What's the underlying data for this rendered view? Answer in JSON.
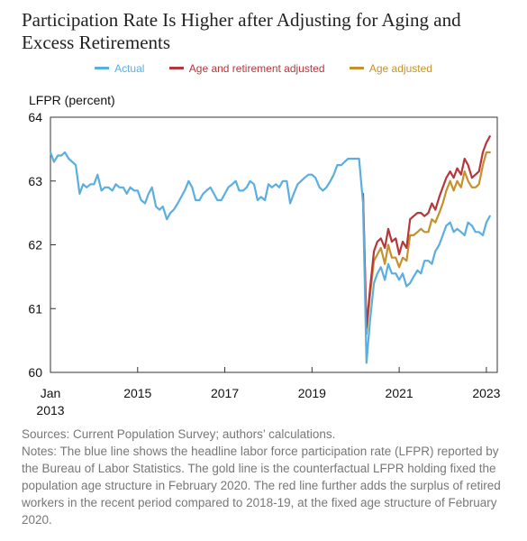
{
  "title": "Participation Rate Is Higher after Adjusting for Aging and Excess Retirements",
  "colors": {
    "actual": "#5aaee0",
    "age_retirement": "#b5373a",
    "age": "#c4912c"
  },
  "chart_data": {
    "type": "line",
    "ylabel": "LFPR (percent)",
    "xlabel": "",
    "ylim": [
      60,
      64
    ],
    "xlim": [
      2013.0,
      2023.25
    ],
    "yticks": [
      60,
      61,
      62,
      63,
      64
    ],
    "xticks": [
      {
        "value": 2013.0,
        "label": "Jan",
        "label2": "2013"
      },
      {
        "value": 2015.0,
        "label": "2015"
      },
      {
        "value": 2017.0,
        "label": "2017"
      },
      {
        "value": 2019.0,
        "label": "2019"
      },
      {
        "value": 2021.0,
        "label": "2021"
      },
      {
        "value": 2023.0,
        "label": "2023"
      }
    ],
    "series": [
      {
        "name": "Actual",
        "color": "#5aaee0",
        "points": [
          [
            2013.0,
            63.45
          ],
          [
            2013.08,
            63.3
          ],
          [
            2013.17,
            63.4
          ],
          [
            2013.25,
            63.4
          ],
          [
            2013.33,
            63.45
          ],
          [
            2013.42,
            63.35
          ],
          [
            2013.5,
            63.3
          ],
          [
            2013.58,
            63.25
          ],
          [
            2013.67,
            62.8
          ],
          [
            2013.75,
            62.95
          ],
          [
            2013.83,
            62.9
          ],
          [
            2013.92,
            62.95
          ],
          [
            2014.0,
            62.95
          ],
          [
            2014.08,
            63.1
          ],
          [
            2014.17,
            62.85
          ],
          [
            2014.25,
            62.9
          ],
          [
            2014.33,
            62.9
          ],
          [
            2014.42,
            62.85
          ],
          [
            2014.5,
            62.95
          ],
          [
            2014.58,
            62.9
          ],
          [
            2014.67,
            62.9
          ],
          [
            2014.75,
            62.8
          ],
          [
            2014.83,
            62.9
          ],
          [
            2014.92,
            62.85
          ],
          [
            2015.0,
            62.85
          ],
          [
            2015.08,
            62.7
          ],
          [
            2015.17,
            62.65
          ],
          [
            2015.25,
            62.8
          ],
          [
            2015.33,
            62.9
          ],
          [
            2015.42,
            62.6
          ],
          [
            2015.5,
            62.55
          ],
          [
            2015.58,
            62.6
          ],
          [
            2015.67,
            62.4
          ],
          [
            2015.75,
            62.5
          ],
          [
            2015.83,
            62.55
          ],
          [
            2015.92,
            62.65
          ],
          [
            2016.0,
            62.75
          ],
          [
            2016.08,
            62.85
          ],
          [
            2016.17,
            63.0
          ],
          [
            2016.25,
            62.9
          ],
          [
            2016.33,
            62.7
          ],
          [
            2016.42,
            62.7
          ],
          [
            2016.5,
            62.8
          ],
          [
            2016.58,
            62.85
          ],
          [
            2016.67,
            62.9
          ],
          [
            2016.75,
            62.8
          ],
          [
            2016.83,
            62.7
          ],
          [
            2016.92,
            62.7
          ],
          [
            2017.0,
            62.8
          ],
          [
            2017.08,
            62.9
          ],
          [
            2017.17,
            62.95
          ],
          [
            2017.25,
            63.0
          ],
          [
            2017.33,
            62.85
          ],
          [
            2017.42,
            62.85
          ],
          [
            2017.5,
            62.9
          ],
          [
            2017.58,
            63.0
          ],
          [
            2017.67,
            62.95
          ],
          [
            2017.75,
            62.7
          ],
          [
            2017.83,
            62.75
          ],
          [
            2017.92,
            62.7
          ],
          [
            2018.0,
            62.95
          ],
          [
            2018.08,
            62.9
          ],
          [
            2018.17,
            62.95
          ],
          [
            2018.25,
            62.9
          ],
          [
            2018.33,
            63.0
          ],
          [
            2018.42,
            63.0
          ],
          [
            2018.5,
            62.65
          ],
          [
            2018.58,
            62.8
          ],
          [
            2018.67,
            62.95
          ],
          [
            2018.75,
            63.0
          ],
          [
            2018.83,
            63.05
          ],
          [
            2018.92,
            63.1
          ],
          [
            2019.0,
            63.1
          ],
          [
            2019.08,
            63.05
          ],
          [
            2019.17,
            62.9
          ],
          [
            2019.25,
            62.85
          ],
          [
            2019.33,
            62.9
          ],
          [
            2019.42,
            63.0
          ],
          [
            2019.5,
            63.1
          ],
          [
            2019.58,
            63.25
          ],
          [
            2019.67,
            63.25
          ],
          [
            2019.75,
            63.3
          ],
          [
            2019.83,
            63.35
          ],
          [
            2019.92,
            63.35
          ],
          [
            2020.0,
            63.35
          ],
          [
            2020.08,
            63.35
          ],
          [
            2020.17,
            62.65
          ],
          [
            2020.25,
            60.15
          ],
          [
            2020.33,
            60.8
          ],
          [
            2020.42,
            61.4
          ],
          [
            2020.5,
            61.55
          ],
          [
            2020.58,
            61.65
          ],
          [
            2020.67,
            61.45
          ],
          [
            2020.75,
            61.7
          ],
          [
            2020.83,
            61.55
          ],
          [
            2020.92,
            61.55
          ],
          [
            2021.0,
            61.45
          ],
          [
            2021.08,
            61.55
          ],
          [
            2021.17,
            61.35
          ],
          [
            2021.25,
            61.4
          ],
          [
            2021.33,
            61.5
          ],
          [
            2021.42,
            61.6
          ],
          [
            2021.5,
            61.55
          ],
          [
            2021.58,
            61.75
          ],
          [
            2021.67,
            61.75
          ],
          [
            2021.75,
            61.7
          ],
          [
            2021.83,
            61.9
          ],
          [
            2021.92,
            62.0
          ],
          [
            2022.0,
            62.15
          ],
          [
            2022.08,
            62.3
          ],
          [
            2022.17,
            62.35
          ],
          [
            2022.25,
            62.2
          ],
          [
            2022.33,
            62.25
          ],
          [
            2022.42,
            62.2
          ],
          [
            2022.5,
            62.15
          ],
          [
            2022.58,
            62.35
          ],
          [
            2022.67,
            62.3
          ],
          [
            2022.75,
            62.2
          ],
          [
            2022.83,
            62.2
          ],
          [
            2022.92,
            62.15
          ],
          [
            2023.0,
            62.35
          ],
          [
            2023.08,
            62.45
          ]
        ]
      },
      {
        "name": "Age and retirement adjusted",
        "color": "#b5373a",
        "points": [
          [
            2020.17,
            62.8
          ],
          [
            2020.25,
            60.7
          ],
          [
            2020.33,
            61.3
          ],
          [
            2020.42,
            61.9
          ],
          [
            2020.5,
            62.05
          ],
          [
            2020.58,
            62.1
          ],
          [
            2020.67,
            61.95
          ],
          [
            2020.75,
            62.25
          ],
          [
            2020.83,
            62.05
          ],
          [
            2020.92,
            62.1
          ],
          [
            2021.0,
            61.85
          ],
          [
            2021.08,
            62.05
          ],
          [
            2021.17,
            61.95
          ],
          [
            2021.25,
            62.4
          ],
          [
            2021.33,
            62.45
          ],
          [
            2021.42,
            62.5
          ],
          [
            2021.5,
            62.5
          ],
          [
            2021.58,
            62.45
          ],
          [
            2021.67,
            62.5
          ],
          [
            2021.75,
            62.65
          ],
          [
            2021.83,
            62.55
          ],
          [
            2021.92,
            62.75
          ],
          [
            2022.0,
            62.9
          ],
          [
            2022.08,
            63.05
          ],
          [
            2022.17,
            63.15
          ],
          [
            2022.25,
            63.05
          ],
          [
            2022.33,
            63.2
          ],
          [
            2022.42,
            63.1
          ],
          [
            2022.5,
            63.35
          ],
          [
            2022.58,
            63.25
          ],
          [
            2022.67,
            63.05
          ],
          [
            2022.75,
            63.1
          ],
          [
            2022.83,
            63.15
          ],
          [
            2022.92,
            63.45
          ],
          [
            2023.0,
            63.6
          ],
          [
            2023.08,
            63.7
          ]
        ]
      },
      {
        "name": "Age adjusted",
        "color": "#c4912c",
        "points": [
          [
            2020.17,
            62.75
          ],
          [
            2020.25,
            60.6
          ],
          [
            2020.33,
            61.2
          ],
          [
            2020.42,
            61.75
          ],
          [
            2020.5,
            61.85
          ],
          [
            2020.58,
            61.95
          ],
          [
            2020.67,
            61.7
          ],
          [
            2020.75,
            62.0
          ],
          [
            2020.83,
            61.8
          ],
          [
            2020.92,
            61.8
          ],
          [
            2021.0,
            61.65
          ],
          [
            2021.08,
            61.8
          ],
          [
            2021.17,
            61.75
          ],
          [
            2021.25,
            62.15
          ],
          [
            2021.33,
            62.15
          ],
          [
            2021.42,
            62.2
          ],
          [
            2021.5,
            62.25
          ],
          [
            2021.58,
            62.2
          ],
          [
            2021.67,
            62.2
          ],
          [
            2021.75,
            62.4
          ],
          [
            2021.83,
            62.35
          ],
          [
            2021.92,
            62.5
          ],
          [
            2022.0,
            62.65
          ],
          [
            2022.08,
            62.85
          ],
          [
            2022.17,
            63.0
          ],
          [
            2022.25,
            62.85
          ],
          [
            2022.33,
            63.0
          ],
          [
            2022.42,
            62.9
          ],
          [
            2022.5,
            63.15
          ],
          [
            2022.58,
            63.0
          ],
          [
            2022.67,
            62.9
          ],
          [
            2022.75,
            62.9
          ],
          [
            2022.83,
            62.95
          ],
          [
            2022.92,
            63.25
          ],
          [
            2023.0,
            63.45
          ],
          [
            2023.08,
            63.45
          ]
        ]
      }
    ]
  },
  "source_lines": [
    "Sources: Current Population Survey; authors’ calculations.",
    "Notes: The blue line shows the headline labor force participation rate (LFPR) reported by the Bureau of Labor Statistics. The gold line is the counterfactual LFPR holding fixed the population age structure in February 2020. The red line further adds the surplus of retired workers in the recent period compared to 2018-19, at the fixed age structure of February 2020."
  ]
}
